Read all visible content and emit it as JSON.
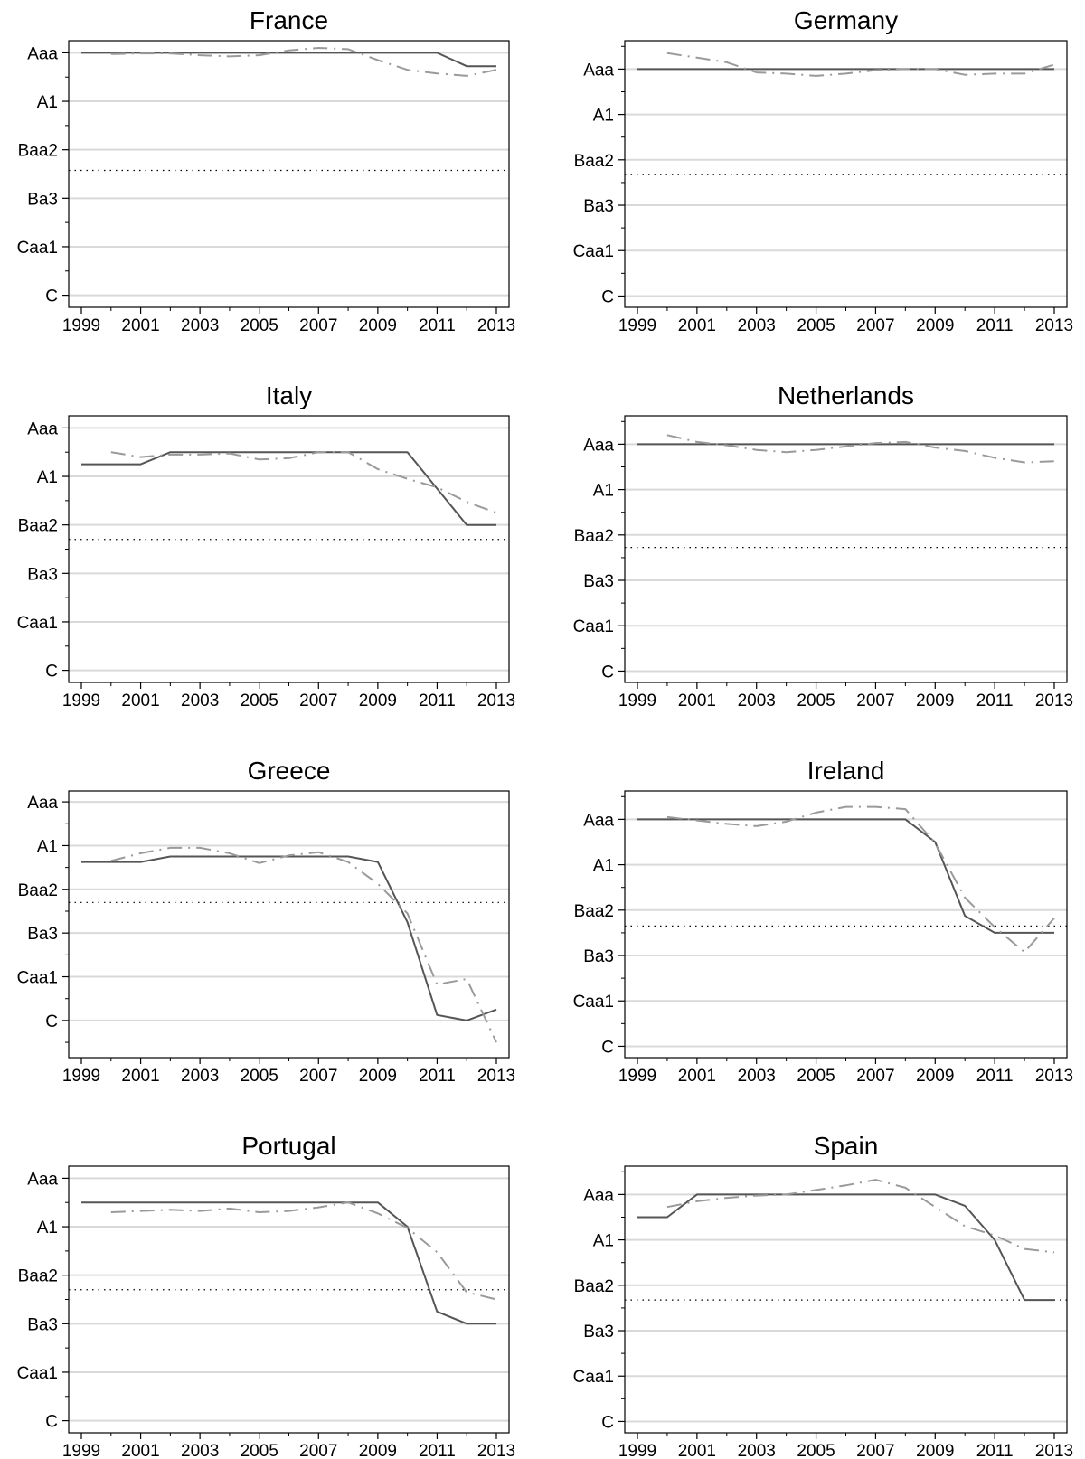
{
  "chart_data": [
    {
      "type": "line",
      "title": "France",
      "x": [
        1999,
        2000,
        2001,
        2002,
        2003,
        2004,
        2005,
        2006,
        2007,
        2008,
        2009,
        2010,
        2011,
        2012,
        2013
      ],
      "yticks": [
        "Aaa",
        "A1",
        "Baa2",
        "Ba3",
        "Caa1",
        "C"
      ],
      "ylim": [
        -1,
        21
      ],
      "xlim": [
        1999,
        2013
      ],
      "xticks": [
        1999,
        2001,
        2003,
        2005,
        2007,
        2009,
        2011,
        2013
      ],
      "threshold": 9.7,
      "series": [
        {
          "values": [
            0,
            0,
            0,
            0,
            0,
            0,
            0,
            0,
            0,
            0,
            0,
            0,
            0,
            1.1,
            1.1
          ]
        },
        {
          "values": [
            null,
            0.1,
            0.05,
            0.05,
            0.2,
            0.3,
            0.2,
            -0.2,
            -0.4,
            -0.3,
            0.6,
            1.4,
            1.7,
            1.9,
            1.4
          ]
        }
      ]
    },
    {
      "type": "line",
      "title": "Germany",
      "x": [
        1999,
        2000,
        2001,
        2002,
        2003,
        2004,
        2005,
        2006,
        2007,
        2008,
        2009,
        2010,
        2011,
        2012,
        2013
      ],
      "yticks": [
        "Aaa",
        "A1",
        "Baa2",
        "Ba3",
        "Caa1",
        "C"
      ],
      "ylim": [
        -2.5,
        21
      ],
      "xlim": [
        1999,
        2013
      ],
      "xticks": [
        1999,
        2001,
        2003,
        2005,
        2007,
        2009,
        2011,
        2013
      ],
      "threshold": 9.3,
      "series": [
        {
          "values": [
            0,
            0,
            0,
            0,
            0,
            0,
            0,
            0,
            0,
            0,
            0,
            0,
            0,
            0,
            0
          ]
        },
        {
          "values": [
            null,
            -1.4,
            -1.0,
            -0.6,
            0.3,
            0.4,
            0.6,
            0.4,
            0.1,
            0.0,
            0.0,
            0.5,
            0.4,
            0.4,
            -0.4
          ]
        }
      ]
    },
    {
      "type": "line",
      "title": "Italy",
      "x": [
        1999,
        2000,
        2001,
        2002,
        2003,
        2004,
        2005,
        2006,
        2007,
        2008,
        2009,
        2010,
        2011,
        2012,
        2013
      ],
      "yticks": [
        "Aaa",
        "A1",
        "Baa2",
        "Ba3",
        "Caa1",
        "C"
      ],
      "ylim": [
        -1,
        21
      ],
      "xlim": [
        1999,
        2013
      ],
      "xticks": [
        1999,
        2001,
        2003,
        2005,
        2007,
        2009,
        2011,
        2013
      ],
      "threshold": 9.2,
      "series": [
        {
          "values": [
            3,
            3,
            3,
            2,
            2,
            2,
            2,
            2,
            2,
            2,
            2,
            2,
            5,
            8,
            8
          ]
        },
        {
          "values": [
            null,
            2.0,
            2.4,
            2.2,
            2.2,
            2.1,
            2.6,
            2.5,
            2.0,
            2.0,
            3.4,
            4.2,
            4.9,
            6.1,
            7.0
          ]
        }
      ]
    },
    {
      "type": "line",
      "title": "Netherlands",
      "x": [
        1999,
        2000,
        2001,
        2002,
        2003,
        2004,
        2005,
        2006,
        2007,
        2008,
        2009,
        2010,
        2011,
        2012,
        2013
      ],
      "yticks": [
        "Aaa",
        "A1",
        "Baa2",
        "Ba3",
        "Caa1",
        "C"
      ],
      "ylim": [
        -2.5,
        21
      ],
      "xlim": [
        1999,
        2013
      ],
      "xticks": [
        1999,
        2001,
        2003,
        2005,
        2007,
        2009,
        2011,
        2013
      ],
      "threshold": 9.1,
      "series": [
        {
          "values": [
            0,
            0,
            0,
            0,
            0,
            0,
            0,
            0,
            0,
            0,
            0,
            0,
            0,
            0,
            0
          ]
        },
        {
          "values": [
            null,
            -0.8,
            -0.2,
            0.1,
            0.5,
            0.7,
            0.5,
            0.2,
            -0.1,
            -0.2,
            0.3,
            0.6,
            1.2,
            1.6,
            1.5
          ]
        }
      ]
    },
    {
      "type": "line",
      "title": "Greece",
      "x": [
        1999,
        2000,
        2001,
        2002,
        2003,
        2004,
        2005,
        2006,
        2007,
        2008,
        2009,
        2010,
        2011,
        2012,
        2013
      ],
      "yticks": [
        "Aaa",
        "A1",
        "Baa2",
        "Ba3",
        "Caa1",
        "C"
      ],
      "ylim": [
        -1,
        23.4
      ],
      "xlim": [
        1999,
        2013
      ],
      "xticks": [
        1999,
        2001,
        2003,
        2005,
        2007,
        2009,
        2011,
        2013
      ],
      "threshold": 9.2,
      "series": [
        {
          "values": [
            5.5,
            5.5,
            5.5,
            5,
            5,
            5,
            5,
            5,
            5,
            5,
            5.5,
            11,
            19.5,
            20,
            19
          ]
        },
        {
          "values": [
            null,
            5.4,
            4.7,
            4.2,
            4.2,
            4.7,
            5.6,
            4.9,
            4.6,
            5.5,
            7.5,
            10.2,
            16.7,
            16.2,
            22
          ]
        }
      ]
    },
    {
      "type": "line",
      "title": "Ireland",
      "x": [
        1999,
        2000,
        2001,
        2002,
        2003,
        2004,
        2005,
        2006,
        2007,
        2008,
        2009,
        2010,
        2011,
        2012,
        2013
      ],
      "yticks": [
        "Aaa",
        "A1",
        "Baa2",
        "Ba3",
        "Caa1",
        "C"
      ],
      "ylim": [
        -2.5,
        21
      ],
      "xlim": [
        1999,
        2013
      ],
      "xticks": [
        1999,
        2001,
        2003,
        2005,
        2007,
        2009,
        2011,
        2013
      ],
      "threshold": 9.4,
      "series": [
        {
          "values": [
            0,
            0,
            0,
            0,
            0,
            0,
            0,
            0,
            0,
            0,
            2,
            8.5,
            10,
            10,
            10
          ]
        },
        {
          "values": [
            null,
            -0.2,
            0.1,
            0.4,
            0.6,
            0.2,
            -0.6,
            -1.1,
            -1.1,
            -0.9,
            2.1,
            6.9,
            9.5,
            11.7,
            8.7
          ]
        }
      ]
    },
    {
      "type": "line",
      "title": "Portugal",
      "x": [
        1999,
        2000,
        2001,
        2002,
        2003,
        2004,
        2005,
        2006,
        2007,
        2008,
        2009,
        2010,
        2011,
        2012,
        2013
      ],
      "yticks": [
        "Aaa",
        "A1",
        "Baa2",
        "Ba3",
        "Caa1",
        "C"
      ],
      "ylim": [
        -1,
        21
      ],
      "xlim": [
        1999,
        2013
      ],
      "xticks": [
        1999,
        2001,
        2003,
        2005,
        2007,
        2009,
        2011,
        2013
      ],
      "threshold": 9.2,
      "series": [
        {
          "values": [
            2,
            2,
            2,
            2,
            2,
            2,
            2,
            2,
            2,
            2,
            2,
            4,
            11,
            12,
            12
          ]
        },
        {
          "values": [
            null,
            2.8,
            2.7,
            2.6,
            2.7,
            2.5,
            2.8,
            2.7,
            2.4,
            2.0,
            2.9,
            4.1,
            6.1,
            9.4,
            10.0
          ]
        }
      ]
    },
    {
      "type": "line",
      "title": "Spain",
      "x": [
        1999,
        2000,
        2001,
        2002,
        2003,
        2004,
        2005,
        2006,
        2007,
        2008,
        2009,
        2010,
        2011,
        2012,
        2013
      ],
      "yticks": [
        "Aaa",
        "A1",
        "Baa2",
        "Ba3",
        "Caa1",
        "C"
      ],
      "ylim": [
        -2.5,
        21
      ],
      "xlim": [
        1999,
        2013
      ],
      "xticks": [
        1999,
        2001,
        2003,
        2005,
        2007,
        2009,
        2011,
        2013
      ],
      "threshold": 9.3,
      "series": [
        {
          "values": [
            2,
            2,
            0,
            0,
            0,
            0,
            0,
            0,
            0,
            0,
            0,
            1,
            4,
            9.3,
            9.3
          ]
        },
        {
          "values": [
            null,
            1.1,
            0.6,
            0.3,
            0.1,
            0.0,
            -0.4,
            -0.8,
            -1.3,
            -0.6,
            1.1,
            2.8,
            3.6,
            4.8,
            5.1
          ]
        }
      ]
    }
  ]
}
